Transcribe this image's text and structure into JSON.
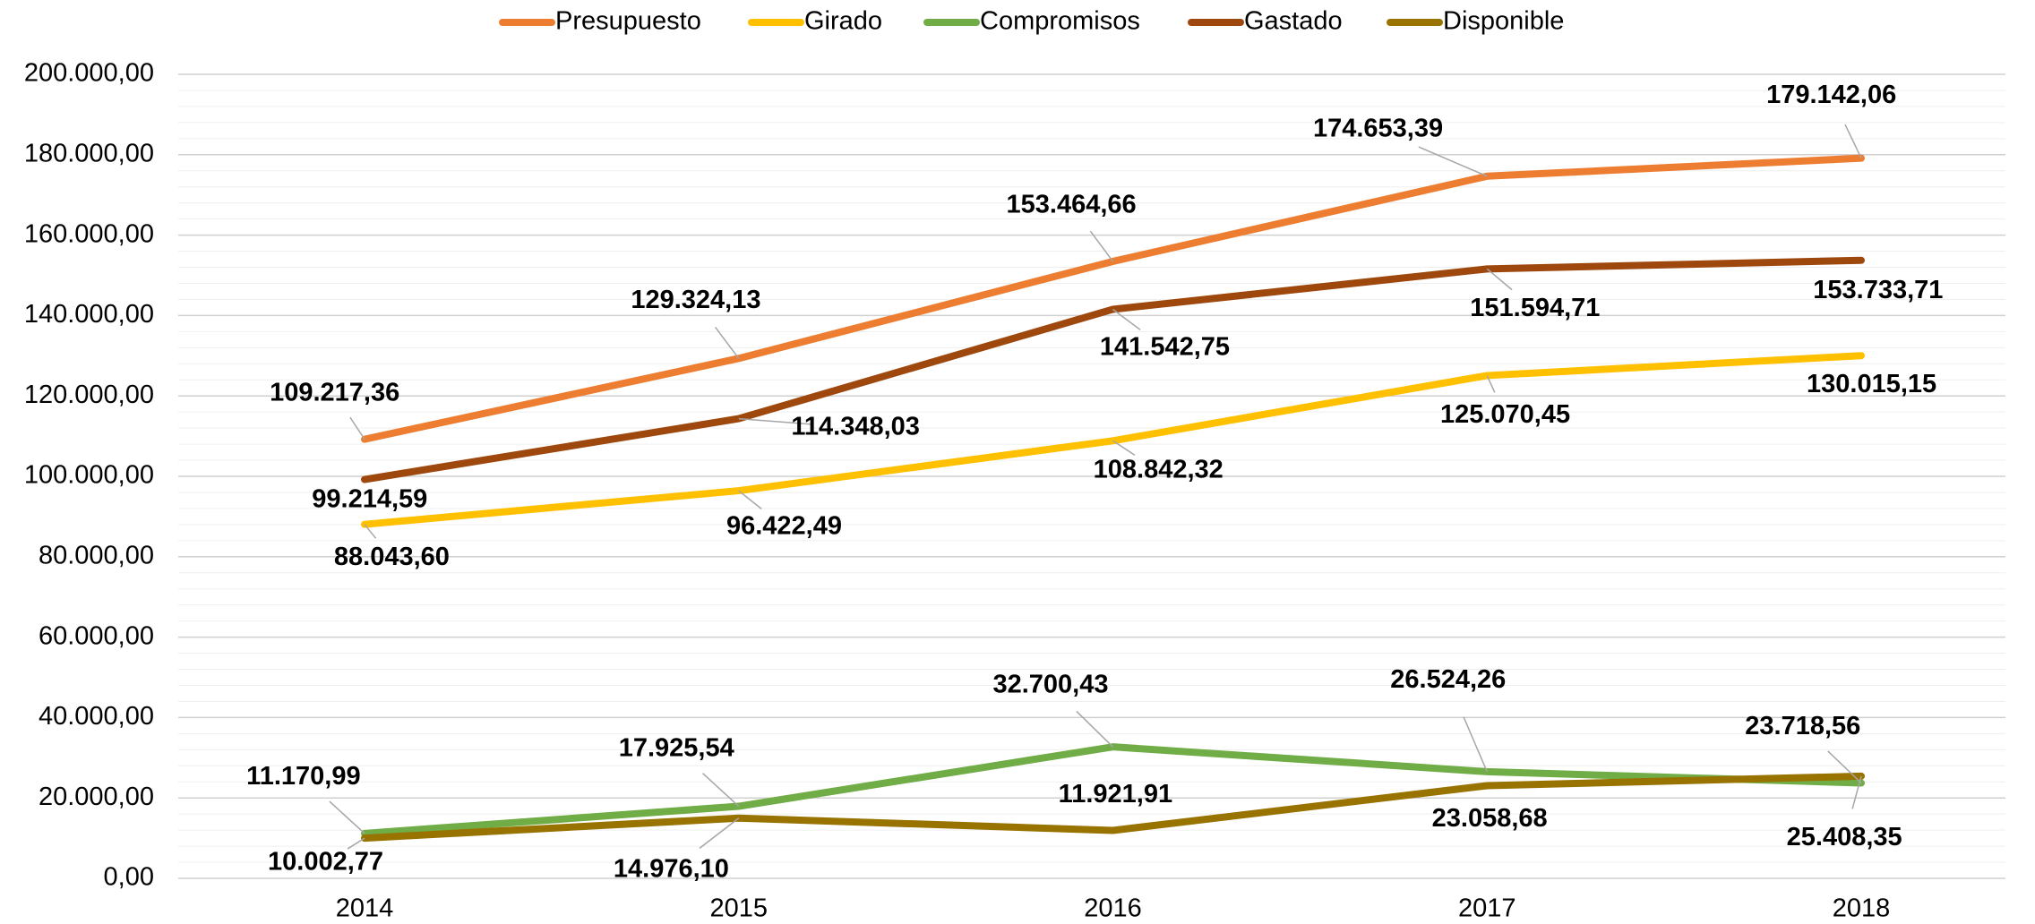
{
  "chart_data": {
    "type": "line",
    "categories": [
      "2014",
      "2015",
      "2016",
      "2017",
      "2018"
    ],
    "series": [
      {
        "name": "Presupuesto",
        "color": "#ED7D31",
        "values": [
          109217.36,
          129324.13,
          153464.66,
          174653.39,
          179142.06
        ],
        "value_labels": [
          "109.217,36",
          "129.324,13",
          "153.464,66",
          "174.653,39",
          "179.142,06"
        ]
      },
      {
        "name": "Girado",
        "color": "#FFC000",
        "values": [
          88043.6,
          96422.49,
          108842.32,
          125070.45,
          130015.15
        ],
        "value_labels": [
          "88.043,60",
          "96.422,49",
          "108.842,32",
          "125.070,45",
          "130.015,15"
        ]
      },
      {
        "name": "Compromisos",
        "color": "#70AD47",
        "values": [
          11170.99,
          17925.54,
          32700.43,
          26524.26,
          23718.56
        ],
        "value_labels": [
          "11.170,99",
          "17.925,54",
          "32.700,43",
          "26.524,26",
          "23.718,56"
        ]
      },
      {
        "name": "Gastado",
        "color": "#9E480E",
        "values": [
          99214.59,
          114348.03,
          141542.75,
          151594.71,
          153733.71
        ],
        "value_labels": [
          "99.214,59",
          "114.348,03",
          "141.542,75",
          "151.594,71",
          "153.733,71"
        ]
      },
      {
        "name": "Disponible",
        "color": "#997300",
        "values": [
          10002.77,
          14976.1,
          11921.91,
          23058.68,
          25408.35
        ],
        "value_labels": [
          "10.002,77",
          "14.976,10",
          "11.921,91",
          "23.058,68",
          "25.408,35"
        ]
      }
    ],
    "ylim": [
      0,
      200000
    ],
    "yticks": [
      {
        "value": 0,
        "label": "0,00"
      },
      {
        "value": 20000,
        "label": "20.000,00"
      },
      {
        "value": 40000,
        "label": "40.000,00"
      },
      {
        "value": 60000,
        "label": "60.000,00"
      },
      {
        "value": 80000,
        "label": "80.000,00"
      },
      {
        "value": 100000,
        "label": "100.000,00"
      },
      {
        "value": 120000,
        "label": "120.000,00"
      },
      {
        "value": 140000,
        "label": "140.000,00"
      },
      {
        "value": 160000,
        "label": "160.000,00"
      },
      {
        "value": 180000,
        "label": "180.000,00"
      },
      {
        "value": 200000,
        "label": "200.000,00"
      }
    ],
    "grid": true,
    "legend": "top"
  }
}
